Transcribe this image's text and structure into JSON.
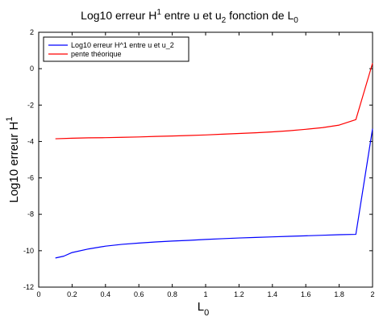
{
  "chart_data": {
    "type": "line",
    "title": {
      "parts": [
        {
          "text": "Log10 erreur H",
          "style": "normal"
        },
        {
          "text": "1",
          "style": "sup"
        },
        {
          "text": " entre u et u",
          "style": "normal"
        },
        {
          "text": "2",
          "style": "sub"
        },
        {
          "text": " fonction de L",
          "style": "normal"
        },
        {
          "text": "0",
          "style": "sub"
        }
      ]
    },
    "xlabel": {
      "main": "L",
      "sub": "0"
    },
    "ylabel": {
      "main": "Log10 erreur H",
      "sup": "1"
    },
    "xlim": [
      0,
      2
    ],
    "ylim": [
      -12,
      2
    ],
    "xticks": [
      "0",
      "0.2",
      "0.4",
      "0.6",
      "0.8",
      "1",
      "1.2",
      "1.4",
      "1.6",
      "1.8",
      "2"
    ],
    "yticks": [
      "-12",
      "-10",
      "-8",
      "-6",
      "-4",
      "-2",
      "0",
      "2"
    ],
    "grid": false,
    "legend_position": "top-left",
    "series": [
      {
        "name": "Log10 erreur H^1 entre u et u_2",
        "color": "#0000ff",
        "x": [
          0.1,
          0.15,
          0.2,
          0.3,
          0.4,
          0.5,
          0.6,
          0.7,
          0.8,
          0.9,
          1.0,
          1.1,
          1.2,
          1.3,
          1.4,
          1.5,
          1.6,
          1.7,
          1.8,
          1.9,
          2.0
        ],
        "y": [
          -10.4,
          -10.3,
          -10.1,
          -9.9,
          -9.75,
          -9.65,
          -9.58,
          -9.52,
          -9.47,
          -9.43,
          -9.38,
          -9.34,
          -9.3,
          -9.27,
          -9.24,
          -9.21,
          -9.18,
          -9.15,
          -9.12,
          -9.1,
          -3.3
        ]
      },
      {
        "name": "pente théorique",
        "color": "#ff0000",
        "x": [
          0.1,
          0.2,
          0.3,
          0.4,
          0.5,
          0.6,
          0.7,
          0.8,
          0.9,
          1.0,
          1.1,
          1.2,
          1.3,
          1.4,
          1.5,
          1.6,
          1.7,
          1.8,
          1.9,
          2.0
        ],
        "y": [
          -3.85,
          -3.82,
          -3.8,
          -3.79,
          -3.77,
          -3.75,
          -3.72,
          -3.7,
          -3.67,
          -3.64,
          -3.6,
          -3.56,
          -3.52,
          -3.47,
          -3.41,
          -3.33,
          -3.24,
          -3.1,
          -2.8,
          0.3
        ]
      }
    ]
  }
}
